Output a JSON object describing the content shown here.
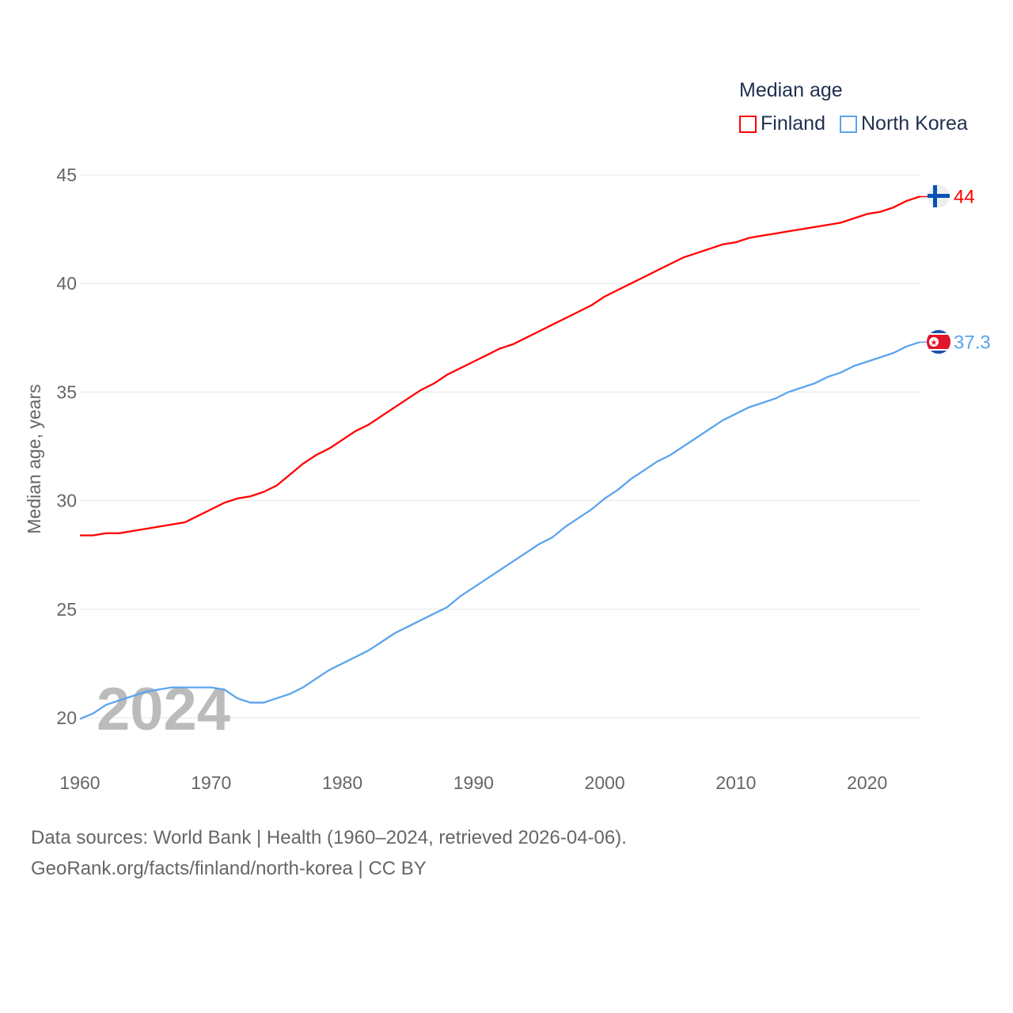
{
  "chart_data": {
    "type": "line",
    "title": "Median age",
    "ylabel": "Median age, years",
    "xlabel": "",
    "xlim": [
      1960,
      2024
    ],
    "ylim": [
      17.5,
      46
    ],
    "yticks": [
      20,
      25,
      30,
      35,
      40,
      45
    ],
    "xticks": [
      1960,
      1970,
      1980,
      1990,
      2000,
      2010,
      2020
    ],
    "grid": true,
    "legend_position": "top-right",
    "year_watermark": "2024",
    "x": [
      1960,
      1961,
      1962,
      1963,
      1964,
      1965,
      1966,
      1967,
      1968,
      1969,
      1970,
      1971,
      1972,
      1973,
      1974,
      1975,
      1976,
      1977,
      1978,
      1979,
      1980,
      1981,
      1982,
      1983,
      1984,
      1985,
      1986,
      1987,
      1988,
      1989,
      1990,
      1991,
      1992,
      1993,
      1994,
      1995,
      1996,
      1997,
      1998,
      1999,
      2000,
      2001,
      2002,
      2003,
      2004,
      2005,
      2006,
      2007,
      2008,
      2009,
      2010,
      2011,
      2012,
      2013,
      2014,
      2015,
      2016,
      2017,
      2018,
      2019,
      2020,
      2021,
      2022,
      2023,
      2024
    ],
    "series": [
      {
        "name": "Finland",
        "color": "#ff0000",
        "end_label": "44",
        "values": [
          28.4,
          28.4,
          28.5,
          28.5,
          28.6,
          28.7,
          28.8,
          28.9,
          29.0,
          29.3,
          29.6,
          29.9,
          30.1,
          30.2,
          30.4,
          30.7,
          31.2,
          31.7,
          32.1,
          32.4,
          32.8,
          33.2,
          33.5,
          33.9,
          34.3,
          34.7,
          35.1,
          35.4,
          35.8,
          36.1,
          36.4,
          36.7,
          37.0,
          37.2,
          37.5,
          37.8,
          38.1,
          38.4,
          38.7,
          39.0,
          39.4,
          39.7,
          40.0,
          40.3,
          40.6,
          40.9,
          41.2,
          41.4,
          41.6,
          41.8,
          41.9,
          42.1,
          42.2,
          42.3,
          42.4,
          42.5,
          42.6,
          42.7,
          42.8,
          43.0,
          43.2,
          43.3,
          43.5,
          43.8,
          44.0
        ]
      },
      {
        "name": "North Korea",
        "color": "#5ba4ee",
        "end_label": "37.3",
        "values": [
          19.95,
          20.2,
          20.6,
          20.8,
          21.0,
          21.2,
          21.3,
          21.4,
          21.4,
          21.4,
          21.4,
          21.3,
          20.9,
          20.7,
          20.7,
          20.9,
          21.1,
          21.4,
          21.8,
          22.2,
          22.5,
          22.8,
          23.1,
          23.5,
          23.9,
          24.2,
          24.5,
          24.8,
          25.1,
          25.6,
          26.0,
          26.4,
          26.8,
          27.2,
          27.6,
          28.0,
          28.3,
          28.8,
          29.2,
          29.6,
          30.1,
          30.5,
          31.0,
          31.4,
          31.8,
          32.1,
          32.5,
          32.9,
          33.3,
          33.7,
          34.0,
          34.3,
          34.5,
          34.7,
          35.0,
          35.2,
          35.4,
          35.7,
          35.9,
          36.2,
          36.4,
          36.6,
          36.8,
          37.1,
          37.3
        ]
      }
    ]
  },
  "sources": {
    "line1": "Data sources: World Bank | Health (1960–2024, retrieved 2026-04-06).",
    "line2": "GeoRank.org/facts/finland/north-korea | CC BY"
  }
}
